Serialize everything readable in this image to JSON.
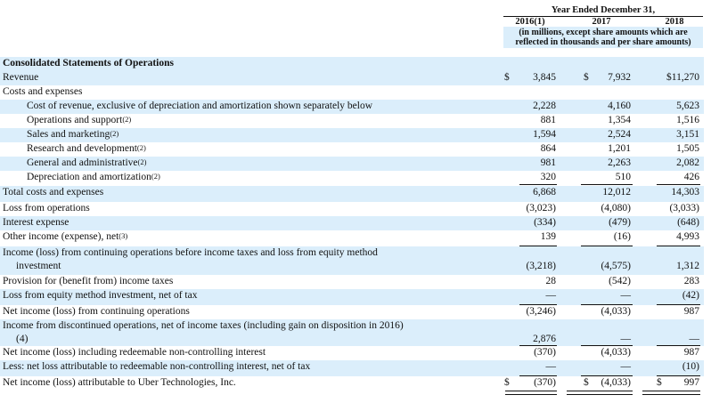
{
  "header": {
    "year_ended": "Year Ended December 31,",
    "years": [
      "2016(1)",
      "2017",
      "2018"
    ],
    "note": "(in millions, except share amounts which are reflected in thousands and per share amounts)"
  },
  "section_title": "Consolidated Statements of Operations",
  "rows": [
    {
      "label": "Revenue",
      "values": [
        "3,845",
        "7,932",
        "$11,270"
      ],
      "currency": [
        "$",
        "$",
        ""
      ]
    },
    {
      "label": "Costs and expenses",
      "values": [
        "",
        "",
        ""
      ]
    },
    {
      "label": "Cost of revenue, exclusive of depreciation and amortization shown separately below",
      "values": [
        "2,228",
        "4,160",
        "5,623"
      ]
    },
    {
      "label": "Operations and support",
      "note": "(2)",
      "values": [
        "881",
        "1,354",
        "1,516"
      ]
    },
    {
      "label": "Sales and marketing",
      "note": "(2)",
      "values": [
        "1,594",
        "2,524",
        "3,151"
      ]
    },
    {
      "label": "Research and development",
      "note": "(2)",
      "values": [
        "864",
        "1,201",
        "1,505"
      ]
    },
    {
      "label": "General and administrative",
      "note": "(2)",
      "values": [
        "981",
        "2,263",
        "2,082"
      ]
    },
    {
      "label": "Depreciation and amortization",
      "note": "(2)",
      "values": [
        "320",
        "510",
        "426"
      ]
    },
    {
      "label": "Total costs and expenses",
      "values": [
        "6,868",
        "12,012",
        "14,303"
      ]
    },
    {
      "label": "Loss from operations",
      "values": [
        "(3,023)",
        "(4,080)",
        "(3,033)"
      ]
    },
    {
      "label": "Interest expense",
      "values": [
        "(334)",
        "(479)",
        "(648)"
      ]
    },
    {
      "label": "Other income (expense), net",
      "note": "(3)",
      "values": [
        "139",
        "(16)",
        "4,993"
      ]
    },
    {
      "label": "Income (loss) from continuing operations before income taxes and loss from equity method",
      "label2": "investment",
      "values": [
        "(3,218)",
        "(4,575)",
        "1,312"
      ]
    },
    {
      "label": "Provision for (benefit from) income taxes",
      "values": [
        "28",
        "(542)",
        "283"
      ]
    },
    {
      "label": "Loss from equity method investment, net of tax",
      "values": [
        "—",
        "—",
        "(42)"
      ]
    },
    {
      "label": "Net income (loss) from continuing operations",
      "values": [
        "(3,246)",
        "(4,033)",
        "987"
      ]
    },
    {
      "label": "Income from discontinued operations, net of income taxes (including gain on disposition in 2016)",
      "label2": "(4)",
      "values": [
        "2,876",
        "—",
        "—"
      ]
    },
    {
      "label": "Net income (loss) including redeemable non-controlling interest",
      "values": [
        "(370)",
        "(4,033)",
        "987"
      ]
    },
    {
      "label": "Less: net loss attributable to redeemable non-controlling interest, net of tax",
      "values": [
        "—",
        "—",
        "(10)"
      ]
    },
    {
      "label": "Net income (loss) attributable to Uber Technologies, Inc.",
      "values": [
        "(370)",
        "(4,033)",
        "997"
      ],
      "currency": [
        "$",
        "$",
        "$"
      ]
    }
  ]
}
